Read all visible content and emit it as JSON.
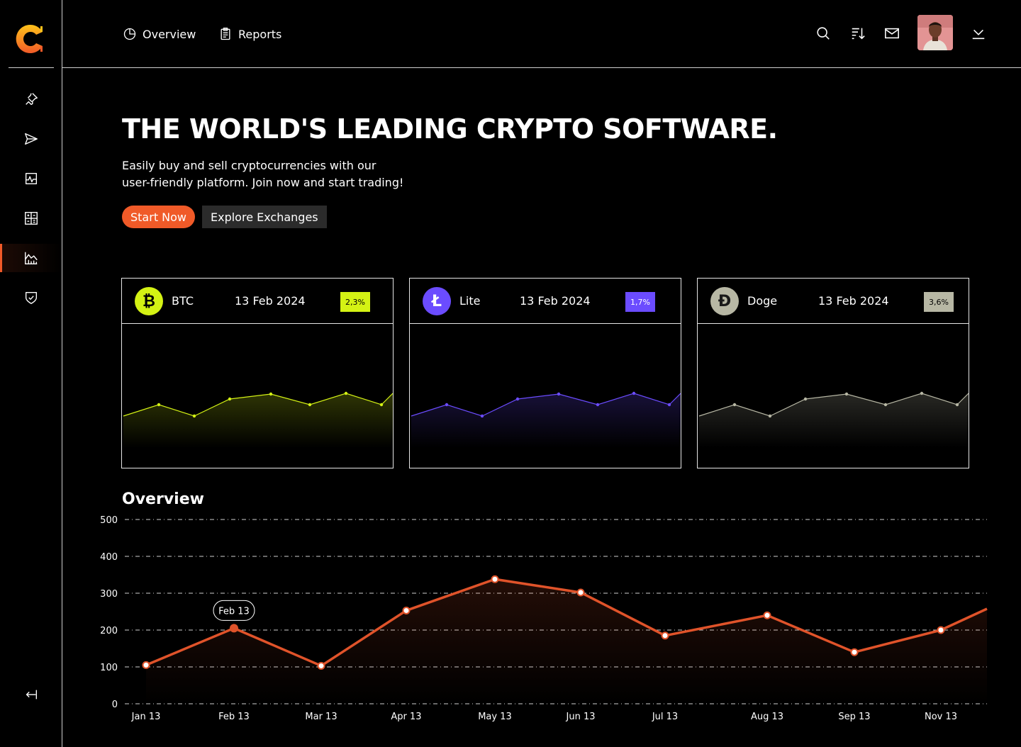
{
  "nav": {
    "overview": "Overview",
    "reports": "Reports"
  },
  "sidebar": {
    "items": [
      {
        "icon": "pin-icon"
      },
      {
        "icon": "send-icon"
      },
      {
        "icon": "activity-icon"
      },
      {
        "icon": "calculator-icon"
      },
      {
        "icon": "chart-icon",
        "active": true
      },
      {
        "icon": "shield-check-icon"
      }
    ],
    "collapse_icon": "collapse-icon"
  },
  "hero": {
    "title": "THE WORLD'S LEADING CRYPTO SOFTWARE.",
    "subtitle_line1": "Easily buy and sell cryptocurrencies with our",
    "subtitle_line2": "user-friendly platform. Join now and start trading!",
    "start_label": "Start Now",
    "explore_label": "Explore Exchanges"
  },
  "colors": {
    "accent": "#f05a28",
    "btc": "#d4f214",
    "lite": "#6b4cff",
    "doge": "#b7b7a4"
  },
  "coins": [
    {
      "symbol": "₿",
      "name": "BTC",
      "date": "13 Feb 2024",
      "change": "2,3%",
      "color": "#d4f214",
      "badge_text_color": "#000"
    },
    {
      "symbol": "Ł",
      "name": "Lite",
      "date": "13 Feb 2024",
      "change": "1,7%",
      "color": "#6b4cff",
      "badge_text_color": "#fff"
    },
    {
      "symbol": "Đ",
      "name": "Doge",
      "date": "13 Feb 2024",
      "change": "3,6%",
      "color": "#b7b7a4",
      "badge_text_color": "#000"
    }
  ],
  "overview": {
    "title": "Overview",
    "tooltip": "Feb 13"
  },
  "chart_data": {
    "type": "line",
    "title": "Overview",
    "xlabel": "",
    "ylabel": "",
    "ylim": [
      0,
      500
    ],
    "yticks": [
      0,
      100,
      200,
      300,
      400,
      500
    ],
    "grid": true,
    "categories": [
      "Jan 13",
      "Feb 13",
      "Mar 13",
      "Apr 13",
      "May 13",
      "Jun 13",
      "Jul 13",
      "Aug 13",
      "Sep 13",
      "Nov 13"
    ],
    "series": [
      {
        "values": [
          105,
          205,
          103,
          253,
          338,
          302,
          185,
          240,
          140,
          200
        ],
        "color": "#e0532a"
      }
    ],
    "highlight": {
      "category": "Feb 13",
      "label": "Feb 13"
    }
  }
}
